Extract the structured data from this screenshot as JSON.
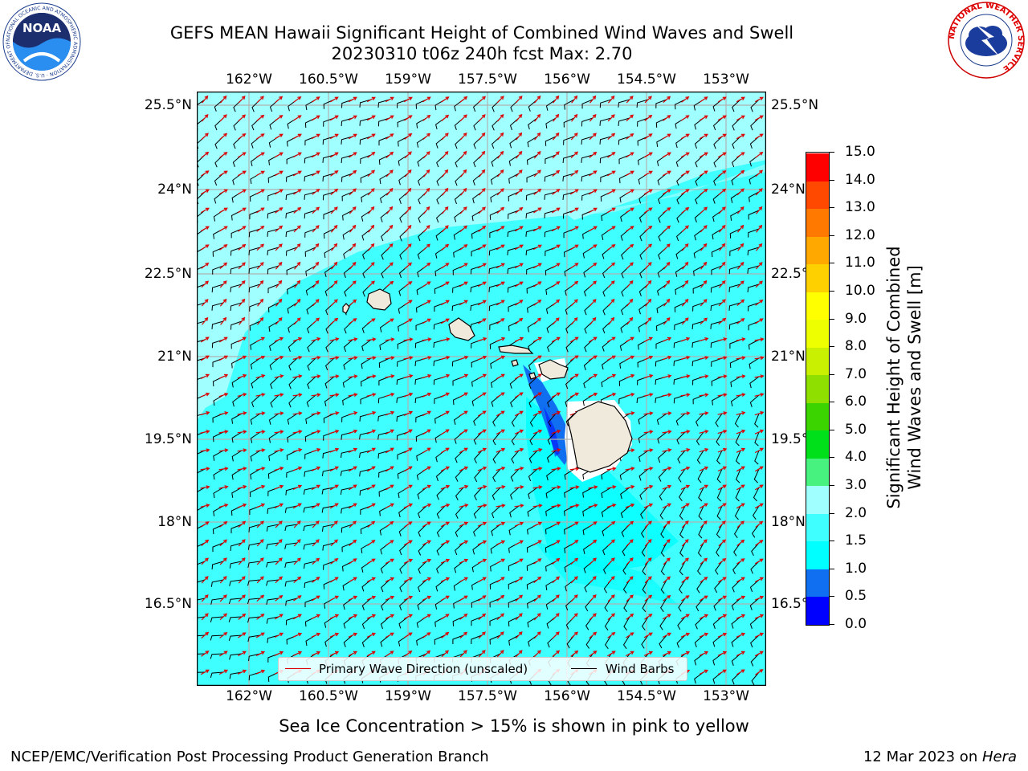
{
  "title": {
    "line1": "GEFS MEAN Hawaii Significant Height of Combined Wind Waves and Swell",
    "line2": "20230310 t06z 240h fcst   Max: 2.70"
  },
  "logos": {
    "noaa": {
      "text": "NOAA",
      "ring_text": "NATIONAL OCEANIC AND ATMOSPHERIC ADMINISTRATION · U.S. DEPARTMENT OF COMMERCE"
    },
    "nws": {
      "ring_text": "NATIONAL WEATHER SERVICE"
    }
  },
  "map": {
    "lon_ticks": [
      "162°W",
      "160.5°W",
      "159°W",
      "157.5°W",
      "156°W",
      "154.5°W",
      "153°W"
    ],
    "lat_ticks": [
      "25.5°N",
      "24°N",
      "22.5°N",
      "21°N",
      "19.5°N",
      "18°N",
      "16.5°N"
    ],
    "lon_range": [
      -163,
      -152.6
    ],
    "lat_range": [
      14.7,
      25.8
    ],
    "legend": {
      "wave_label": "Primary Wave Direction (unscaled)",
      "barb_label": "Wind Barbs",
      "wave_color": "#dd0000",
      "barb_color": "#000000"
    },
    "islands": [
      "Niihau",
      "Kauai",
      "Oahu",
      "Molokai",
      "Maui",
      "Hawaii"
    ]
  },
  "colorbar": {
    "label_line1": "Significant Height of Combined",
    "label_line2": "Wind Waves and Swell [m]",
    "levels": [
      "0.0",
      "0.5",
      "1.0",
      "1.5",
      "2.0",
      "3.0",
      "4.0",
      "5.0",
      "6.0",
      "7.0",
      "8.0",
      "9.0",
      "10.0",
      "11.0",
      "12.0",
      "13.0",
      "14.0",
      "15.0"
    ],
    "colors": [
      "#0000ff",
      "#0f6ff0",
      "#00ffff",
      "#40ffff",
      "#a0ffff",
      "#48f27e",
      "#00e01a",
      "#3bd400",
      "#8fe000",
      "#c8f000",
      "#eeff00",
      "#ffff00",
      "#ffd000",
      "#ffa800",
      "#ff7800",
      "#ff4800",
      "#ff0000"
    ]
  },
  "footer": {
    "sea_ice_note": "Sea Ice Concentration > 15% is shown in pink to yellow",
    "branch": "NCEP/EMC/Verification Post Processing Product Generation Branch",
    "date": "12 Mar 2023 on ",
    "machine": "Hera"
  }
}
